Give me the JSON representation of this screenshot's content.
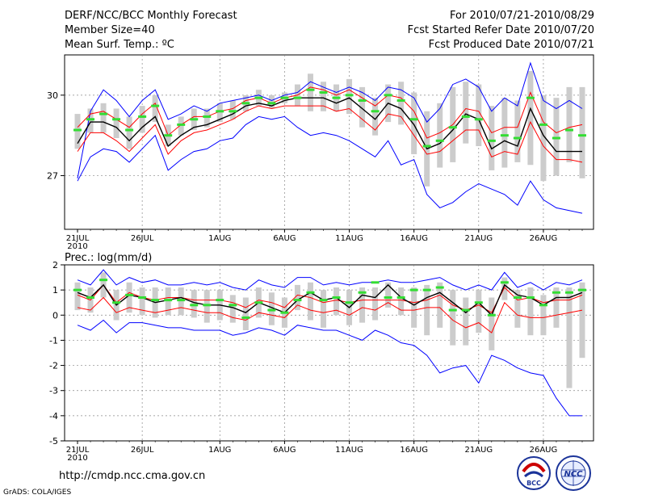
{
  "header": {
    "title": "DERF/NCC/BCC Monthly Forecast",
    "member_size": "Member Size=40",
    "variable": "Mean Surf. Temp.: ºC",
    "forecast_period": "For 2010/07/21-2010/08/29",
    "started_refer": "Fcst Started Refer Date 2010/07/20",
    "produced": "Fcst Produced Date 2010/07/21"
  },
  "footer": {
    "url": "http://cmdp.ncc.cma.gov.cn",
    "grads_credit": "GrADS: COLA/IGES",
    "logo_bcc_text": "BCC",
    "logo_ncc_text": "NCC"
  },
  "chart_data": [
    {
      "type": "line",
      "variable": "Mean Surf. Temp.: ºC",
      "x_tick_labels": [
        "21JUL",
        "26JUL",
        "1AUG",
        "6AUG",
        "11AUG",
        "16AUG",
        "21AUG",
        "26AUG"
      ],
      "x_tick_days": [
        1,
        6,
        12,
        17,
        22,
        27,
        32,
        37
      ],
      "year_label": "2010",
      "y_ticks": [
        27,
        30
      ],
      "ylim": [
        25.0,
        31.5
      ],
      "days": 40,
      "series": [
        {
          "name": "ensemble-max",
          "color": "#0000ff",
          "values": [
            26.9,
            29.4,
            30.2,
            29.8,
            29.2,
            29.8,
            30.2,
            29.1,
            29.3,
            29.6,
            29.4,
            29.7,
            29.8,
            29.9,
            30.0,
            29.8,
            30.0,
            30.1,
            30.5,
            30.3,
            30.1,
            30.3,
            30.1,
            29.8,
            30.3,
            30.2,
            29.9,
            29.0,
            29.5,
            30.4,
            30.6,
            30.3,
            29.4,
            29.9,
            29.6,
            31.2,
            29.8,
            29.5,
            29.8,
            29.5
          ]
        },
        {
          "name": "upper",
          "color": "#ff0000",
          "values": [
            28.8,
            29.3,
            29.4,
            29.1,
            28.8,
            29.3,
            29.7,
            28.5,
            28.9,
            29.2,
            29.2,
            29.4,
            29.5,
            29.8,
            29.9,
            29.7,
            29.9,
            30.0,
            30.3,
            30.2,
            30.0,
            30.2,
            29.9,
            29.6,
            30.0,
            29.9,
            29.4,
            28.4,
            28.6,
            28.9,
            29.5,
            29.4,
            28.6,
            28.8,
            28.8,
            30.1,
            29.0,
            28.6,
            28.8,
            28.9
          ]
        },
        {
          "name": "ensemble-mean",
          "color": "#000000",
          "values": [
            28.2,
            29.0,
            29.0,
            28.8,
            28.3,
            28.8,
            29.2,
            28.1,
            28.5,
            28.8,
            28.9,
            29.1,
            29.3,
            29.6,
            29.7,
            29.6,
            29.8,
            29.9,
            29.9,
            29.9,
            29.7,
            29.9,
            29.5,
            29.1,
            29.7,
            29.5,
            28.9,
            28.0,
            28.2,
            28.7,
            29.3,
            29.1,
            28.0,
            28.3,
            28.1,
            29.5,
            28.5,
            27.9,
            27.9,
            27.9
          ]
        },
        {
          "name": "lower",
          "color": "#ff0000",
          "values": [
            27.9,
            28.6,
            28.6,
            28.3,
            27.9,
            28.4,
            28.9,
            27.8,
            28.3,
            28.6,
            28.7,
            28.9,
            29.1,
            29.4,
            29.6,
            29.5,
            29.6,
            29.6,
            29.6,
            29.6,
            29.4,
            29.5,
            29.1,
            28.7,
            29.3,
            29.2,
            28.5,
            27.8,
            27.9,
            28.3,
            28.7,
            28.7,
            27.7,
            27.9,
            27.8,
            29.0,
            28.1,
            27.6,
            27.6,
            27.5
          ]
        },
        {
          "name": "ensemble-min",
          "color": "#0000ff",
          "values": [
            26.8,
            27.7,
            28.0,
            27.9,
            27.5,
            28.0,
            28.5,
            27.2,
            27.6,
            27.9,
            28.0,
            28.3,
            28.4,
            28.9,
            29.2,
            29.1,
            29.2,
            28.8,
            28.5,
            28.6,
            28.5,
            28.3,
            28.0,
            27.7,
            28.3,
            27.4,
            27.6,
            26.3,
            25.8,
            26.0,
            26.4,
            26.7,
            26.5,
            26.3,
            25.9,
            26.8,
            26.1,
            25.8,
            25.7,
            25.6
          ]
        },
        {
          "name": "deterministic",
          "color": "#33dd33",
          "values": [
            28.7,
            29.1,
            29.3,
            29.1,
            28.7,
            29.2,
            29.6,
            28.5,
            28.9,
            29.1,
            29.2,
            29.4,
            29.4,
            29.7,
            29.9,
            29.7,
            29.9,
            29.9,
            30.2,
            30.1,
            29.9,
            30.0,
            29.8,
            29.4,
            30.0,
            29.8,
            29.1,
            28.1,
            28.3,
            28.8,
            29.2,
            29.1,
            28.3,
            28.5,
            28.4,
            29.9,
            28.9,
            28.4,
            28.7,
            28.5
          ]
        }
      ],
      "spread_bars": {
        "color": "#cccccc",
        "low": [
          28.0,
          28.6,
          28.6,
          28.4,
          28.0,
          28.6,
          29.0,
          28.1,
          28.5,
          28.7,
          28.8,
          29.0,
          29.1,
          29.4,
          29.6,
          29.5,
          29.7,
          29.6,
          29.4,
          29.4,
          29.4,
          29.3,
          28.8,
          28.5,
          29.0,
          28.9,
          27.8,
          26.6,
          27.3,
          27.5,
          28.2,
          28.1,
          27.2,
          27.3,
          27.5,
          27.4,
          26.8,
          27.0,
          27.5,
          26.9
        ],
        "high": [
          29.3,
          29.5,
          29.7,
          29.5,
          29.2,
          29.6,
          30.0,
          28.9,
          29.2,
          29.5,
          29.5,
          29.7,
          29.8,
          30.0,
          30.2,
          30.0,
          30.1,
          30.4,
          30.8,
          30.5,
          30.4,
          30.6,
          30.3,
          29.9,
          30.4,
          30.5,
          30.1,
          29.4,
          29.7,
          30.3,
          30.5,
          30.4,
          29.6,
          29.9,
          29.8,
          30.9,
          30.0,
          29.9,
          30.3,
          30.3
        ]
      }
    },
    {
      "type": "line",
      "variable": "Prec.: log(mm/d)",
      "x_tick_labels": [
        "21JUL",
        "26JUL",
        "1AUG",
        "6AUG",
        "11AUG",
        "16AUG",
        "21AUG",
        "26AUG"
      ],
      "x_tick_days": [
        1,
        6,
        12,
        17,
        22,
        27,
        32,
        37
      ],
      "year_label": "2010",
      "y_ticks": [
        2,
        1,
        0,
        -1,
        -2,
        -3,
        -4,
        -5
      ],
      "ylim": [
        -5,
        2
      ],
      "days": 40,
      "series": [
        {
          "name": "ensemble-max",
          "color": "#0000ff",
          "values": [
            1.4,
            1.2,
            1.8,
            1.2,
            1.5,
            1.3,
            1.4,
            1.2,
            1.2,
            1.3,
            1.2,
            1.3,
            1.1,
            1.0,
            1.4,
            1.2,
            1.1,
            1.5,
            1.5,
            1.2,
            1.3,
            1.2,
            1.3,
            1.3,
            1.4,
            1.3,
            1.3,
            1.4,
            1.5,
            1.2,
            1.0,
            1.2,
            1.0,
            1.7,
            1.1,
            1.3,
            1.0,
            1.3,
            1.2,
            1.4
          ]
        },
        {
          "name": "upper",
          "color": "#ff0000",
          "values": [
            0.8,
            0.6,
            1.2,
            0.5,
            0.9,
            0.7,
            0.6,
            0.7,
            0.7,
            0.6,
            0.6,
            0.6,
            0.5,
            0.3,
            0.6,
            0.5,
            0.3,
            0.8,
            0.7,
            0.5,
            0.6,
            0.5,
            0.6,
            0.6,
            0.6,
            0.6,
            0.5,
            0.6,
            0.8,
            0.4,
            0.2,
            0.4,
            0.1,
            1.1,
            0.6,
            0.7,
            0.5,
            0.6,
            0.6,
            0.8
          ]
        },
        {
          "name": "ensemble-mean",
          "color": "#000000",
          "values": [
            0.9,
            0.7,
            1.2,
            0.4,
            0.8,
            0.7,
            0.5,
            0.6,
            0.7,
            0.5,
            0.4,
            0.4,
            0.3,
            0.1,
            0.5,
            0.3,
            0.1,
            0.6,
            0.9,
            0.6,
            0.7,
            0.3,
            0.8,
            0.7,
            1.2,
            0.7,
            0.4,
            0.7,
            0.9,
            0.5,
            0.1,
            0.5,
            0.0,
            1.2,
            0.8,
            0.7,
            0.4,
            0.7,
            0.7,
            0.9
          ]
        },
        {
          "name": "lower",
          "color": "#ff0000",
          "values": [
            0.3,
            0.2,
            0.7,
            0.1,
            0.3,
            0.2,
            0.1,
            0.2,
            0.3,
            0.2,
            0.1,
            0.1,
            -0.1,
            -0.2,
            0.1,
            0.0,
            -0.1,
            0.4,
            0.2,
            0.1,
            0.2,
            0.0,
            0.3,
            0.2,
            0.5,
            0.2,
            0.2,
            0.3,
            0.3,
            -0.2,
            -0.5,
            -0.3,
            -0.7,
            0.5,
            0.0,
            -0.1,
            -0.1,
            0.0,
            0.1,
            0.2
          ]
        },
        {
          "name": "ensemble-min",
          "color": "#0000ff",
          "values": [
            -0.4,
            -0.6,
            -0.2,
            -0.7,
            -0.3,
            -0.3,
            -0.4,
            -0.5,
            -0.5,
            -0.6,
            -0.6,
            -0.6,
            -0.8,
            -0.7,
            -0.5,
            -0.6,
            -0.8,
            -0.4,
            -0.5,
            -0.6,
            -0.6,
            -0.8,
            -1.0,
            -0.6,
            -0.8,
            -1.1,
            -1.2,
            -1.6,
            -2.3,
            -2.1,
            -2.0,
            -2.7,
            -1.6,
            -1.8,
            -2.1,
            -2.3,
            -2.4,
            -3.3,
            -4.0,
            -4.0
          ]
        },
        {
          "name": "deterministic",
          "color": "#33dd33",
          "values": [
            1.0,
            0.7,
            1.4,
            0.5,
            0.8,
            0.7,
            0.6,
            0.6,
            0.6,
            0.4,
            0.4,
            0.6,
            0.4,
            -0.1,
            0.5,
            0.2,
            0.1,
            0.6,
            0.9,
            0.6,
            0.7,
            0.5,
            0.9,
            1.3,
            0.7,
            0.7,
            1.0,
            1.0,
            1.1,
            0.2,
            0.2,
            0.5,
            0.0,
            1.3,
            0.7,
            0.7,
            0.4,
            0.9,
            0.9,
            1.0
          ]
        }
      ],
      "spread_bars": {
        "color": "#cccccc",
        "low": [
          0.2,
          0.1,
          0.7,
          -0.2,
          0.1,
          0.0,
          -0.1,
          0.0,
          0.0,
          -0.1,
          -0.3,
          -0.2,
          -0.3,
          -0.6,
          -0.1,
          -0.4,
          -0.5,
          0.2,
          -0.2,
          -0.5,
          0.0,
          -0.4,
          -0.3,
          -0.2,
          0.3,
          0.0,
          -0.5,
          -0.8,
          -0.5,
          -1.2,
          -1.2,
          -0.7,
          -1.4,
          0.6,
          -0.5,
          -0.8,
          -0.8,
          -0.5,
          -2.9,
          -1.7
        ],
        "high": [
          1.3,
          1.1,
          1.7,
          1.0,
          1.3,
          1.1,
          1.1,
          1.1,
          1.1,
          1.0,
          1.0,
          1.0,
          0.8,
          0.7,
          1.1,
          0.9,
          0.7,
          1.2,
          1.3,
          1.0,
          1.1,
          1.0,
          1.1,
          1.1,
          1.3,
          1.1,
          1.1,
          1.2,
          1.3,
          1.0,
          0.7,
          1.0,
          0.7,
          1.5,
          1.0,
          1.1,
          0.8,
          1.1,
          1.1,
          1.3
        ]
      }
    }
  ]
}
